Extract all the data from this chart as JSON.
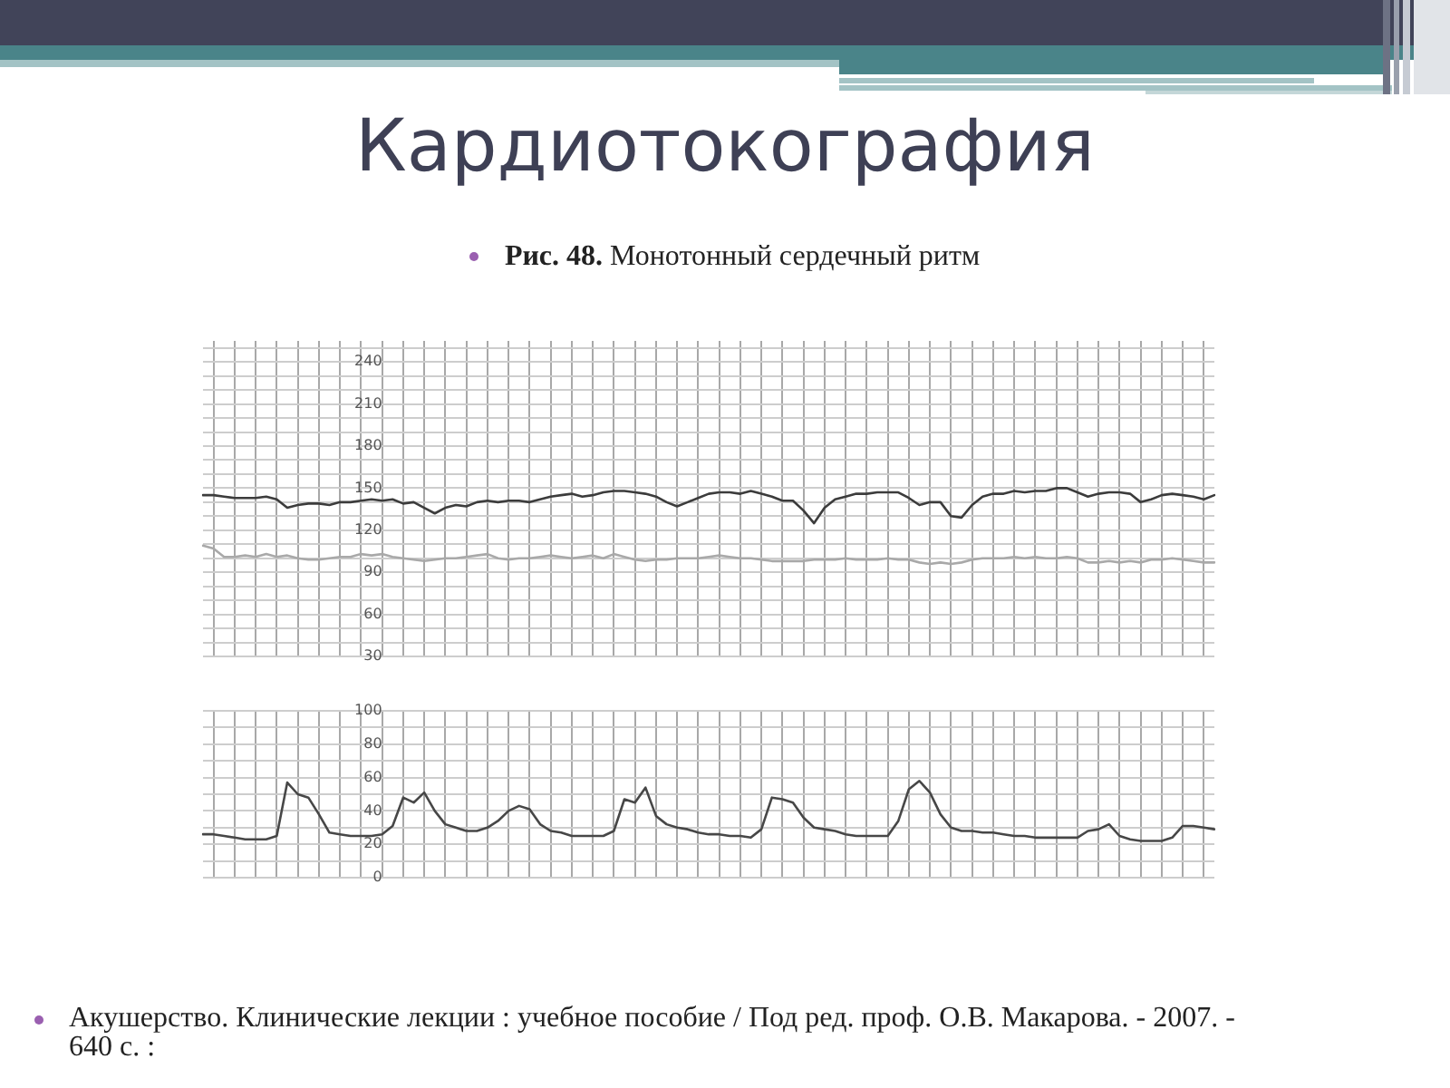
{
  "chart_data": [
    {
      "type": "line",
      "title": "Кардиотокография",
      "subtitle": "Рис. 48. Монотонный сердечный ритм",
      "categories": [
        null,
        null,
        null,
        null,
        null,
        null,
        null,
        null,
        null,
        null,
        null,
        null,
        null,
        null,
        null,
        null,
        null,
        null,
        null,
        null,
        null,
        null,
        null,
        null,
        null,
        null,
        null,
        null,
        null,
        null,
        null,
        null,
        null,
        null,
        null,
        null,
        null,
        null,
        null,
        null,
        null,
        null,
        null,
        null,
        null,
        null,
        null,
        null,
        null,
        null,
        null,
        null,
        null,
        null,
        null,
        null,
        null,
        null,
        null,
        null,
        null,
        null,
        null,
        null,
        null,
        null,
        null,
        null,
        null,
        null,
        null,
        null,
        null,
        null,
        null,
        null,
        null,
        null,
        null,
        null,
        null,
        null,
        null,
        null,
        null,
        null,
        null,
        null,
        null,
        null,
        null,
        null,
        null,
        null,
        null,
        null,
        null
      ],
      "series": [
        {
          "color": "#3c3c3c",
          "values": [
            145,
            145,
            144,
            143,
            143,
            143,
            144,
            142,
            136,
            138,
            139,
            139,
            138,
            140,
            140,
            141,
            142,
            141,
            142,
            139,
            140,
            136,
            132,
            136,
            138,
            137,
            140,
            141,
            140,
            141,
            141,
            140,
            142,
            144,
            145,
            146,
            144,
            145,
            147,
            148,
            148,
            147,
            146,
            144,
            140,
            137,
            140,
            143,
            146,
            147,
            147,
            146,
            148,
            146,
            144,
            141,
            141,
            134,
            125,
            136,
            142,
            144,
            146,
            146,
            147,
            147,
            147,
            143,
            138,
            140,
            140,
            130,
            129,
            138,
            144,
            146,
            146,
            148,
            147,
            148,
            148,
            150,
            150,
            147,
            144,
            146,
            147,
            147,
            146,
            140,
            142,
            145,
            146,
            145,
            144,
            142,
            145
          ]
        },
        {
          "color": "#a9a9a9",
          "values": [
            109,
            107,
            101,
            101,
            102,
            101,
            103,
            101,
            102,
            100,
            99,
            99,
            100,
            101,
            101,
            103,
            102,
            103,
            101,
            100,
            99,
            98,
            99,
            100,
            100,
            101,
            102,
            103,
            100,
            99,
            100,
            100,
            101,
            102,
            101,
            100,
            101,
            102,
            100,
            103,
            101,
            99,
            98,
            99,
            99,
            100,
            100,
            100,
            101,
            102,
            101,
            100,
            100,
            99,
            98,
            98,
            98,
            98,
            99,
            99,
            99,
            100,
            99,
            99,
            99,
            100,
            99,
            99,
            97,
            96,
            97,
            96,
            97,
            99,
            100,
            100,
            100,
            101,
            100,
            101,
            100,
            100,
            101,
            100,
            97,
            97,
            98,
            97,
            98,
            97,
            99,
            99,
            100,
            99,
            98,
            97,
            97
          ]
        }
      ],
      "ylim": [
        30,
        255
      ],
      "yticks": [
        30,
        {
          "value": 40,
          "label": null
        },
        {
          "value": 50,
          "label": null
        },
        60,
        {
          "value": 70,
          "label": null
        },
        {
          "value": 80,
          "label": null
        },
        90,
        {
          "value": 100,
          "label": null
        },
        {
          "value": 110,
          "label": null
        },
        120,
        {
          "value": 130,
          "label": null
        },
        {
          "value": 140,
          "label": null
        },
        150,
        {
          "value": 160,
          "label": null
        },
        {
          "value": 170,
          "label": null
        },
        180,
        {
          "value": 190,
          "label": null
        },
        {
          "value": 200,
          "label": null
        },
        210,
        {
          "value": 220,
          "label": null
        },
        {
          "value": 230,
          "label": null
        },
        240,
        {
          "value": 250,
          "label": null
        }
      ],
      "grid": true,
      "tick_labels": "y"
    },
    {
      "type": "line",
      "annotations": [
        "Акушерство. Клинические лекции : учебное пособие / Под ред. проф. О.В. Макарова. - 2007. - 640 с. :"
      ],
      "categories": [
        null,
        null,
        null,
        null,
        null,
        null,
        null,
        null,
        null,
        null,
        null,
        null,
        null,
        null,
        null,
        null,
        null,
        null,
        null,
        null,
        null,
        null,
        null,
        null,
        null,
        null,
        null,
        null,
        null,
        null,
        null,
        null,
        null,
        null,
        null,
        null,
        null,
        null,
        null,
        null,
        null,
        null,
        null,
        null,
        null,
        null,
        null,
        null,
        null,
        null,
        null,
        null,
        null,
        null,
        null,
        null,
        null,
        null,
        null,
        null,
        null,
        null,
        null,
        null,
        null,
        null,
        null,
        null,
        null,
        null,
        null,
        null,
        null,
        null,
        null,
        null,
        null,
        null,
        null,
        null,
        null,
        null,
        null,
        null,
        null,
        null,
        null,
        null,
        null,
        null,
        null,
        null,
        null,
        null,
        null,
        null,
        null
      ],
      "series": [
        {
          "color": "#474747",
          "values": [
            26,
            26,
            25,
            24,
            23,
            23,
            23,
            25,
            57,
            50,
            48,
            38,
            27,
            26,
            25,
            25,
            25,
            26,
            31,
            48,
            45,
            51,
            40,
            32,
            30,
            28,
            28,
            30,
            34,
            40,
            43,
            41,
            32,
            28,
            27,
            25,
            25,
            25,
            25,
            28,
            47,
            45,
            54,
            37,
            32,
            30,
            29,
            27,
            26,
            26,
            25,
            25,
            24,
            29,
            48,
            47,
            45,
            36,
            30,
            29,
            28,
            26,
            25,
            25,
            25,
            25,
            34,
            53,
            58,
            51,
            38,
            30,
            28,
            28,
            27,
            27,
            26,
            25,
            25,
            24,
            24,
            24,
            24,
            24,
            28,
            29,
            32,
            25,
            23,
            22,
            22,
            22,
            24,
            31,
            31,
            30,
            29
          ]
        }
      ],
      "ylim": [
        0,
        100
      ],
      "yticks": [
        0,
        {
          "value": 10,
          "label": null
        },
        20,
        {
          "value": 30,
          "label": null
        },
        40,
        {
          "value": 50,
          "label": null
        },
        60,
        {
          "value": 70,
          "label": null
        },
        80,
        {
          "value": 90,
          "label": null
        },
        100
      ],
      "grid": true,
      "tick_labels": "y"
    }
  ]
}
